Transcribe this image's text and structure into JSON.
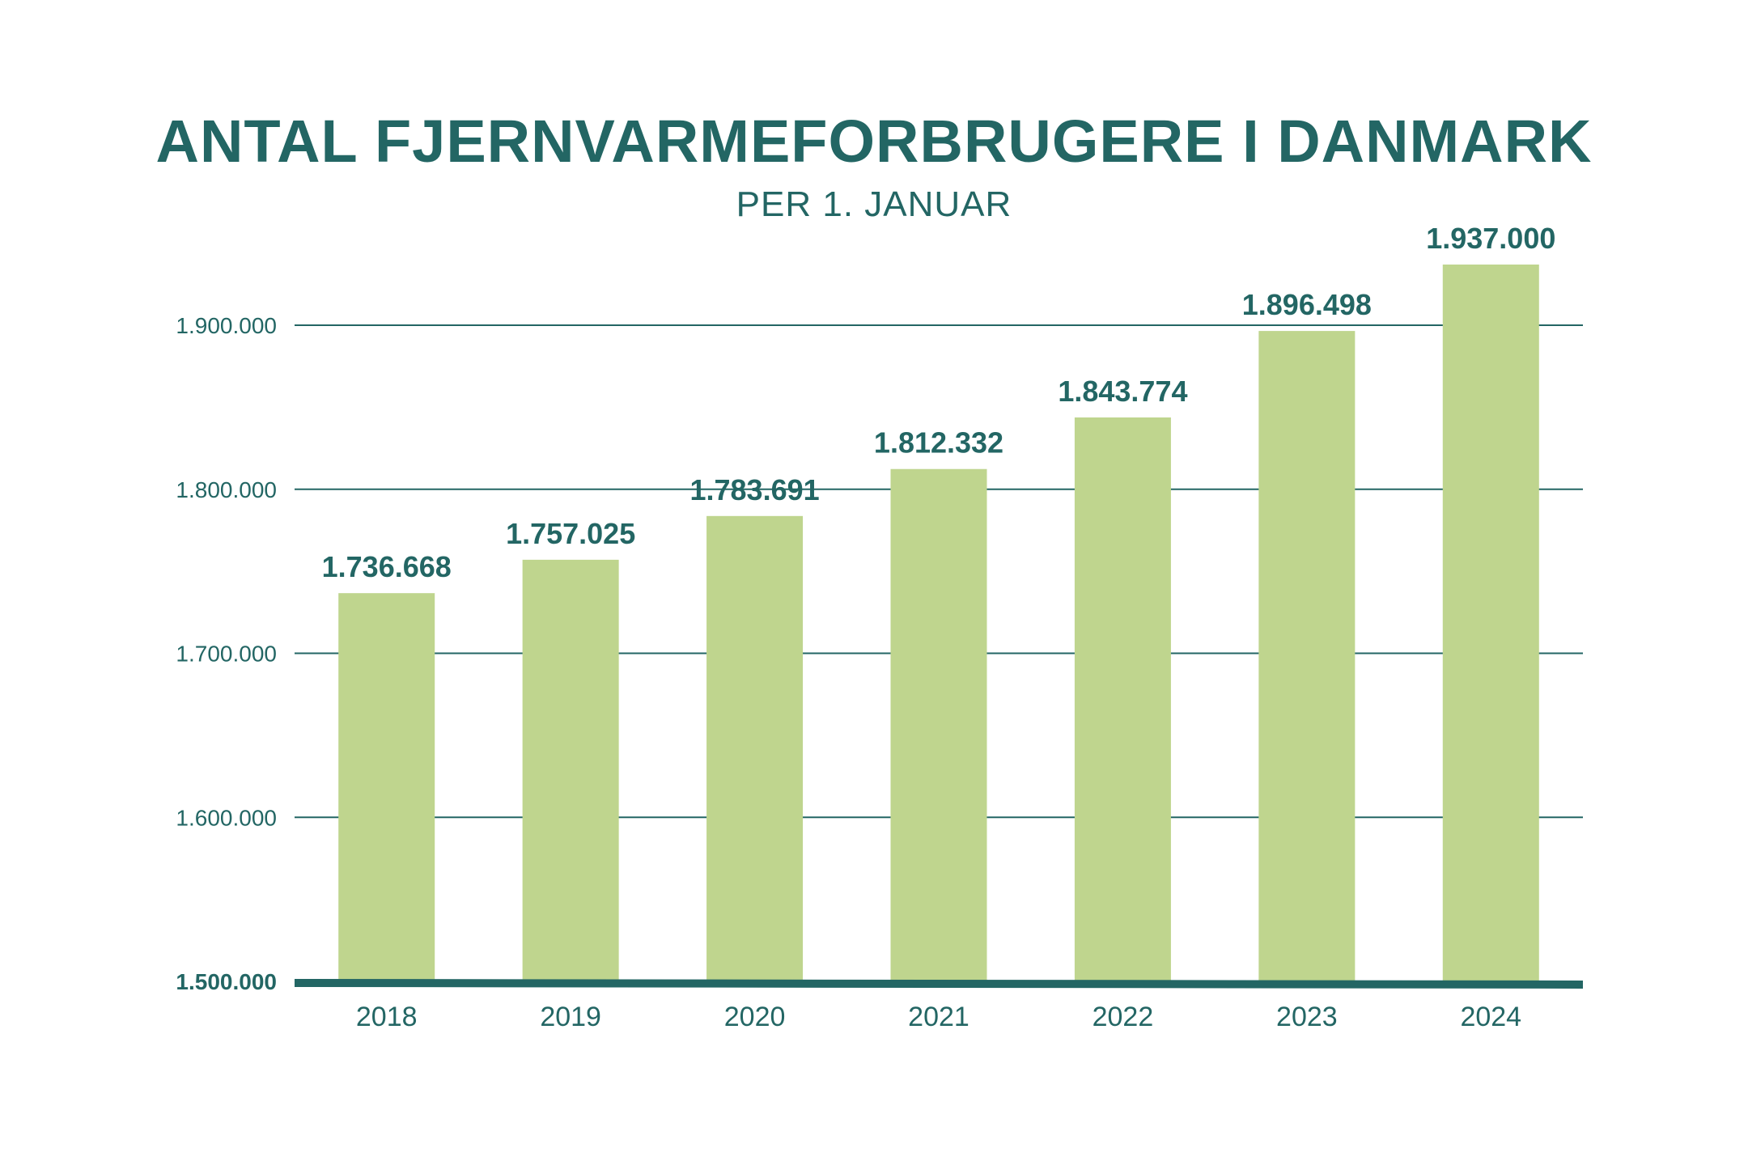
{
  "chart_data": {
    "type": "bar",
    "title": "ANTAL FJERNVARMEFORBRUGERE I DANMARK",
    "subtitle": "PER 1. JANUAR",
    "categories": [
      "2018",
      "2019",
      "2020",
      "2021",
      "2022",
      "2023",
      "2024"
    ],
    "values": [
      1736668,
      1757025,
      1783691,
      1812332,
      1843774,
      1896498,
      1937000
    ],
    "data_labels": [
      "1.736.668",
      "1.757.025",
      "1.783.691",
      "1.812.332",
      "1.843.774",
      "1.896.498",
      "1.937.000"
    ],
    "yticks": [
      1500000,
      1600000,
      1700000,
      1800000,
      1900000
    ],
    "ytick_labels": [
      "1.500.000",
      "1.600.000",
      "1.700.000",
      "1.800.000",
      "1.900.000"
    ],
    "ylim": [
      1500000,
      1960000
    ],
    "grid": true,
    "xlabel": "",
    "ylabel": "",
    "colors": {
      "bar": "#bfd58e",
      "text": "#236664",
      "grid": "#236664"
    }
  }
}
